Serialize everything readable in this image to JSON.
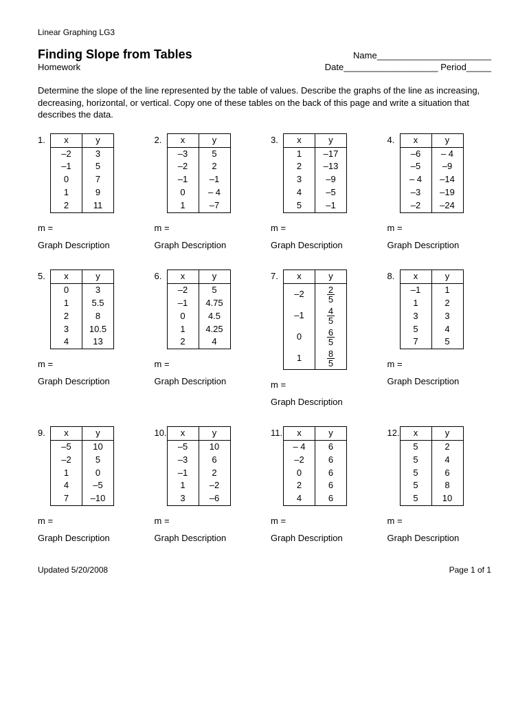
{
  "header_top": "Linear Graphing LG3",
  "title": "Finding Slope from Tables",
  "subtitle": "Homework",
  "name_label": "Name_______________________",
  "date_label": "Date___________________",
  "period_label": "Period_____",
  "instructions": "Determine the slope of the line represented by the table of values.  Describe the graphs of the line as increasing, decreasing, horizontal, or vertical.   Copy one of these tables on the back of this page and write a situation that describes the data.",
  "col_x": "x",
  "col_y": "y",
  "m_label": "m =",
  "gd_label": "Graph Description",
  "footer_left": "Updated 5/20/2008",
  "footer_right": "Page 1 of 1",
  "problems": [
    {
      "n": "1.",
      "rows": [
        [
          "–2",
          "3"
        ],
        [
          "–1",
          "5"
        ],
        [
          "0",
          "7"
        ],
        [
          "1",
          "9"
        ],
        [
          "2",
          "11"
        ]
      ]
    },
    {
      "n": "2.",
      "rows": [
        [
          "–3",
          "5"
        ],
        [
          "–2",
          "2"
        ],
        [
          "–1",
          "–1"
        ],
        [
          "0",
          "– 4"
        ],
        [
          "1",
          "–7"
        ]
      ]
    },
    {
      "n": "3.",
      "rows": [
        [
          "1",
          "–17"
        ],
        [
          "2",
          "–13"
        ],
        [
          "3",
          "–9"
        ],
        [
          "4",
          "–5"
        ],
        [
          "5",
          "–1"
        ]
      ]
    },
    {
      "n": "4.",
      "rows": [
        [
          "–6",
          "– 4"
        ],
        [
          "–5",
          "–9"
        ],
        [
          "– 4",
          "–14"
        ],
        [
          "–3",
          "–19"
        ],
        [
          "–2",
          "–24"
        ]
      ]
    },
    {
      "n": "5.",
      "rows": [
        [
          "0",
          "3"
        ],
        [
          "1",
          "5.5"
        ],
        [
          "2",
          "8"
        ],
        [
          "3",
          "10.5"
        ],
        [
          "4",
          "13"
        ]
      ]
    },
    {
      "n": "6.",
      "rows": [
        [
          "–2",
          "5"
        ],
        [
          "–1",
          "4.75"
        ],
        [
          "0",
          "4.5"
        ],
        [
          "1",
          "4.25"
        ],
        [
          "2",
          "4"
        ]
      ]
    },
    {
      "n": "7.",
      "fractions": true,
      "rows": [
        [
          "–2",
          {
            "num": "2",
            "den": "5"
          }
        ],
        [
          "–1",
          {
            "num": "4",
            "den": "5"
          }
        ],
        [
          "0",
          {
            "num": "6",
            "den": "5"
          }
        ],
        [
          "1",
          {
            "num": "8",
            "den": "5"
          }
        ]
      ]
    },
    {
      "n": "8.",
      "rows": [
        [
          "–1",
          "1"
        ],
        [
          "1",
          "2"
        ],
        [
          "3",
          "3"
        ],
        [
          "5",
          "4"
        ],
        [
          "7",
          "5"
        ]
      ]
    },
    {
      "n": "9.",
      "rows": [
        [
          "–5",
          "10"
        ],
        [
          "–2",
          "5"
        ],
        [
          "1",
          "0"
        ],
        [
          "4",
          "–5"
        ],
        [
          "7",
          "–10"
        ]
      ]
    },
    {
      "n": "10.",
      "rows": [
        [
          "–5",
          "10"
        ],
        [
          "–3",
          "6"
        ],
        [
          "–1",
          "2"
        ],
        [
          "1",
          "–2"
        ],
        [
          "3",
          "–6"
        ]
      ]
    },
    {
      "n": "11.",
      "rows": [
        [
          "– 4",
          "6"
        ],
        [
          "–2",
          "6"
        ],
        [
          "0",
          "6"
        ],
        [
          "2",
          "6"
        ],
        [
          "4",
          "6"
        ]
      ]
    },
    {
      "n": "12.",
      "rows": [
        [
          "5",
          "2"
        ],
        [
          "5",
          "4"
        ],
        [
          "5",
          "6"
        ],
        [
          "5",
          "8"
        ],
        [
          "5",
          "10"
        ]
      ]
    }
  ]
}
